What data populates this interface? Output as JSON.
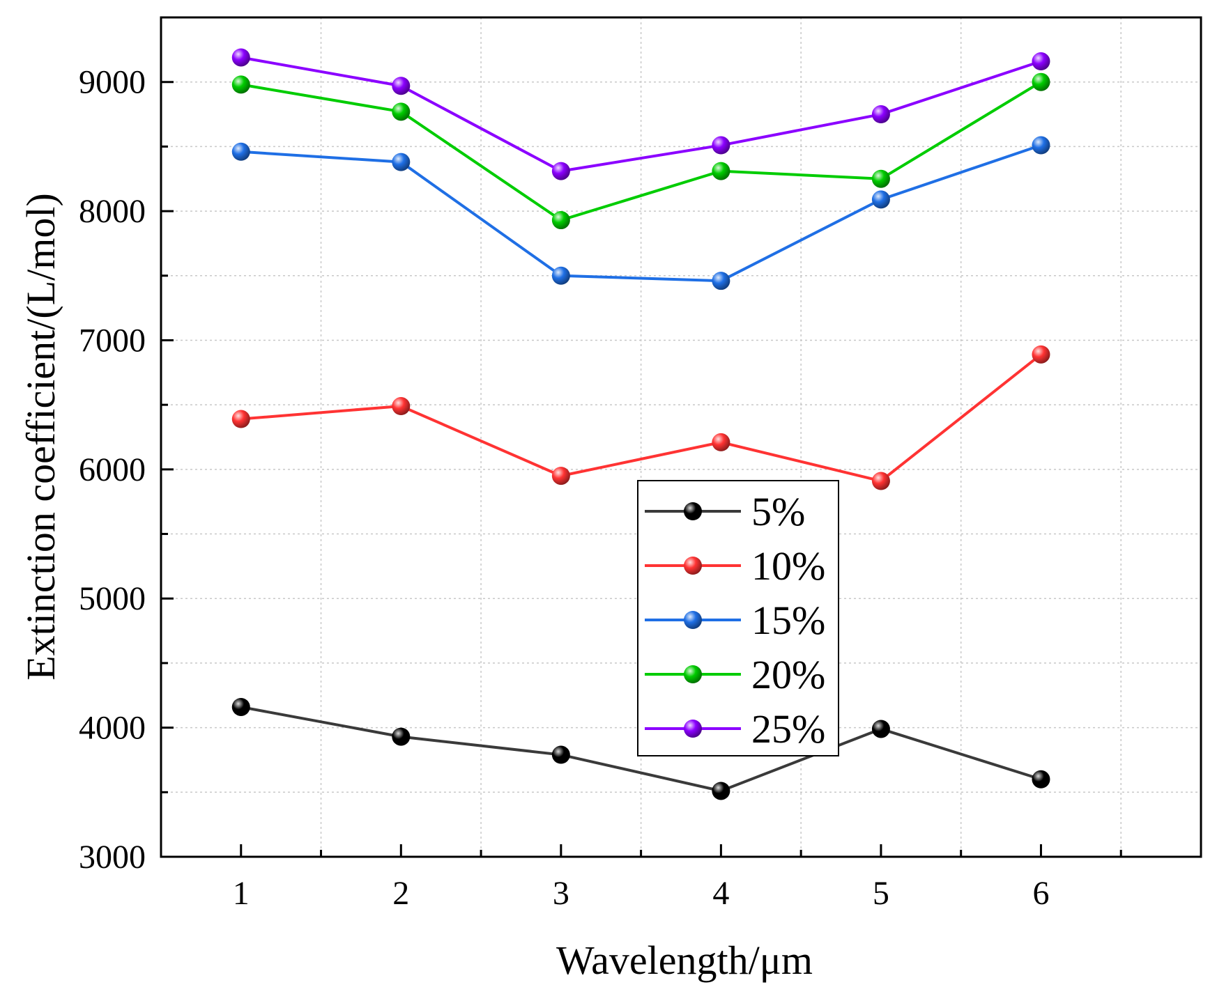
{
  "chart_data": {
    "type": "line",
    "xlabel": "Wavelength/μm",
    "ylabel": "Extinction coefficient/(L/mol)",
    "xlim": [
      0.5,
      7.0
    ],
    "ylim": [
      3000,
      9500
    ],
    "x": [
      1,
      2,
      3,
      4,
      5,
      6
    ],
    "x_ticks": [
      "1",
      "2",
      "3",
      "4",
      "5",
      "6"
    ],
    "y_ticks": [
      "3000",
      "4000",
      "5000",
      "6000",
      "7000",
      "8000",
      "9000"
    ],
    "grid": true,
    "legend_position": "center",
    "series": [
      {
        "name": "5%",
        "color": "#000000",
        "values": [
          4160,
          3930,
          3790,
          3510,
          3990,
          3600
        ]
      },
      {
        "name": "10%",
        "color": "#ff3333",
        "values": [
          6390,
          6490,
          5950,
          6210,
          5910,
          6890
        ]
      },
      {
        "name": "15%",
        "color": "#1f6fe5",
        "values": [
          8460,
          8380,
          7500,
          7460,
          8090,
          8510
        ]
      },
      {
        "name": "20%",
        "color": "#00cc00",
        "values": [
          8980,
          8770,
          7930,
          8310,
          8250,
          9000
        ]
      },
      {
        "name": "25%",
        "color": "#8b00ff",
        "values": [
          9190,
          8970,
          8310,
          8510,
          8750,
          9160
        ]
      }
    ]
  }
}
